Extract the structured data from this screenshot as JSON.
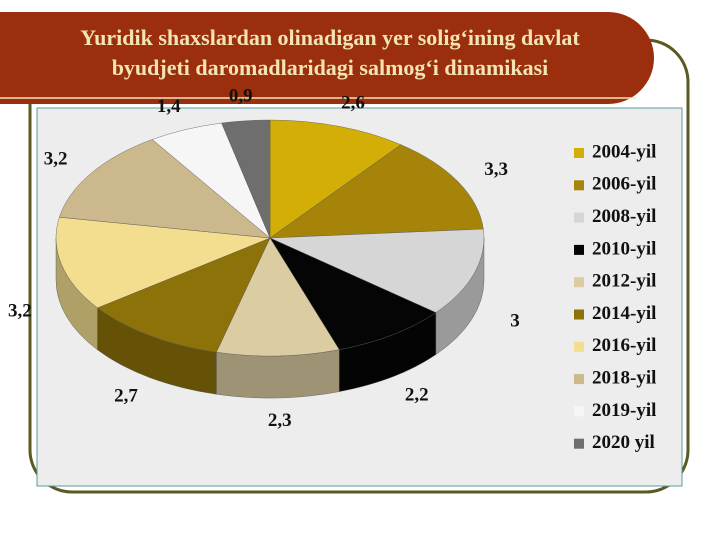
{
  "chart_data": {
    "type": "pie3d",
    "title": [
      "Yuridik shaxslardan olinadigan yer solig‘ining davlat",
      "byudjeti daromadlaridagi salmog‘i dinamikasi"
    ],
    "categories": [
      "2004-yil",
      "2006-yil",
      "2008-yil",
      "2010-yil",
      "2012-yil",
      "2014-yil",
      "2016-yil",
      "2018-yil",
      "2019-yil",
      "2020 yil"
    ],
    "values": [
      2.6,
      3.3,
      3,
      2.2,
      2.3,
      2.7,
      3.2,
      3.2,
      1.4,
      0.9
    ],
    "value_labels": [
      "2,6",
      "3,3",
      "3",
      "2,2",
      "2,3",
      "2,7",
      "3,2",
      "3,2",
      "1,4",
      "0,9"
    ],
    "colors": [
      "#d2ae06",
      "#a6840a",
      "#d6d6d6",
      "#050505",
      "#dccca2",
      "#8c7208",
      "#f2de8e",
      "#cbb88c",
      "#f6f6f6",
      "#6e6e6e"
    ],
    "legend": "right"
  }
}
